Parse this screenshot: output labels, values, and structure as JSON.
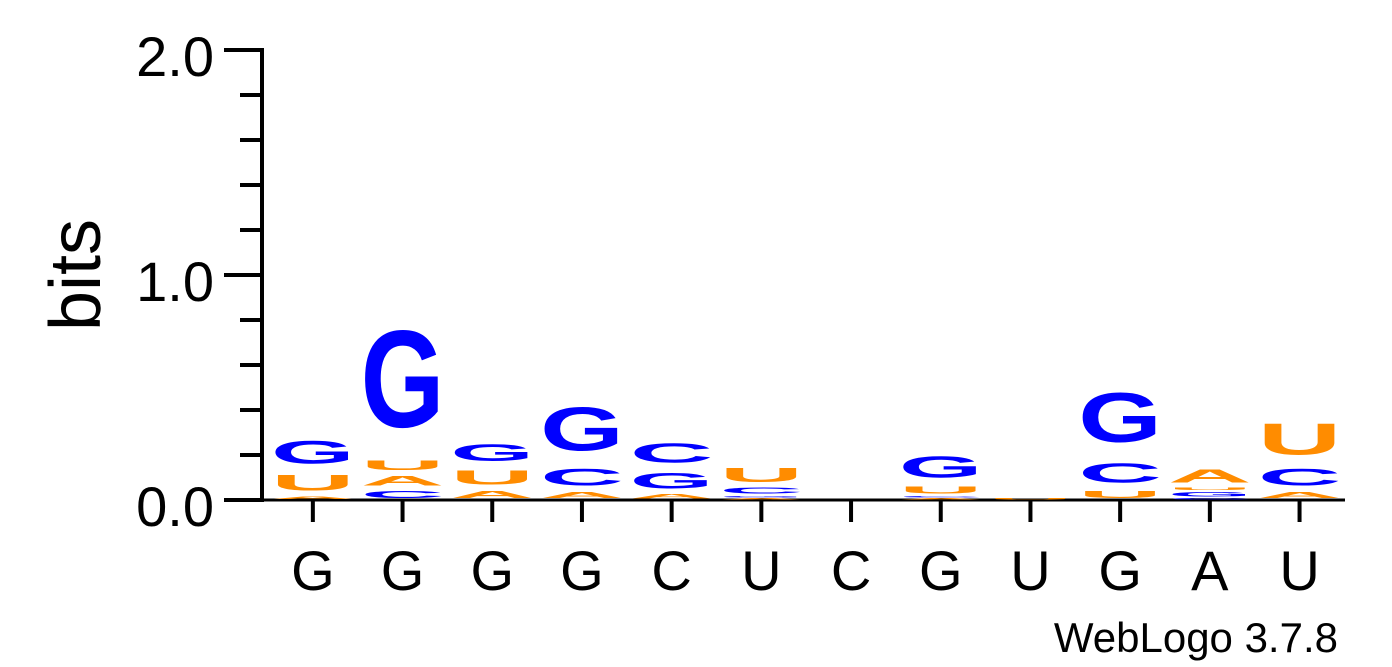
{
  "chart_data": {
    "type": "sequence-logo",
    "ylabel": "bits",
    "ylim": [
      0,
      2
    ],
    "yticks": [
      "0.0",
      "1.0",
      "2.0"
    ],
    "footer": "WebLogo 3.7.8",
    "colors": {
      "G": "#0000ff",
      "C": "#0000ff",
      "A": "#ff8c00",
      "U": "#ff8c00"
    },
    "positions": [
      {
        "label": "G",
        "stack": [
          {
            "letter": "A",
            "bits": 0.02
          },
          {
            "letter": "U",
            "bits": 0.11
          },
          {
            "letter": "G",
            "bits": 0.16
          }
        ]
      },
      {
        "label": "G",
        "stack": [
          {
            "letter": "C",
            "bits": 0.05
          },
          {
            "letter": "A",
            "bits": 0.07
          },
          {
            "letter": "U",
            "bits": 0.07
          },
          {
            "letter": "G",
            "bits": 0.69
          }
        ]
      },
      {
        "label": "G",
        "stack": [
          {
            "letter": "A",
            "bits": 0.05
          },
          {
            "letter": "U",
            "bits": 0.1
          },
          {
            "letter": "G",
            "bits": 0.12
          }
        ]
      },
      {
        "label": "G",
        "stack": [
          {
            "letter": "A",
            "bits": 0.04
          },
          {
            "letter": "C",
            "bits": 0.12
          },
          {
            "letter": "G",
            "bits": 0.31
          }
        ]
      },
      {
        "label": "C",
        "stack": [
          {
            "letter": "A",
            "bits": 0.03
          },
          {
            "letter": "G",
            "bits": 0.11
          },
          {
            "letter": "C",
            "bits": 0.14
          }
        ]
      },
      {
        "label": "U",
        "stack": [
          {
            "letter": "A",
            "bits": 0.01
          },
          {
            "letter": "G",
            "bits": 0.01
          },
          {
            "letter": "C",
            "bits": 0.04
          },
          {
            "letter": "U",
            "bits": 0.1
          }
        ]
      },
      {
        "label": "C",
        "stack": []
      },
      {
        "label": "G",
        "stack": [
          {
            "letter": "A",
            "bits": 0.01
          },
          {
            "letter": "C",
            "bits": 0.01
          },
          {
            "letter": "U",
            "bits": 0.05
          },
          {
            "letter": "G",
            "bits": 0.15
          }
        ]
      },
      {
        "label": "U",
        "stack": [
          {
            "letter": "U",
            "bits": 0.01
          }
        ]
      },
      {
        "label": "G",
        "stack": [
          {
            "letter": "U",
            "bits": 0.05
          },
          {
            "letter": "C",
            "bits": 0.14
          },
          {
            "letter": "G",
            "bits": 0.35
          }
        ]
      },
      {
        "label": "A",
        "stack": [
          {
            "letter": "C",
            "bits": 0.01
          },
          {
            "letter": "G",
            "bits": 0.03
          },
          {
            "letter": "U",
            "bits": 0.02
          },
          {
            "letter": "A",
            "bits": 0.09
          }
        ]
      },
      {
        "label": "U",
        "stack": [
          {
            "letter": "A",
            "bits": 0.04
          },
          {
            "letter": "C",
            "bits": 0.12
          },
          {
            "letter": "U",
            "bits": 0.22
          }
        ]
      }
    ]
  }
}
